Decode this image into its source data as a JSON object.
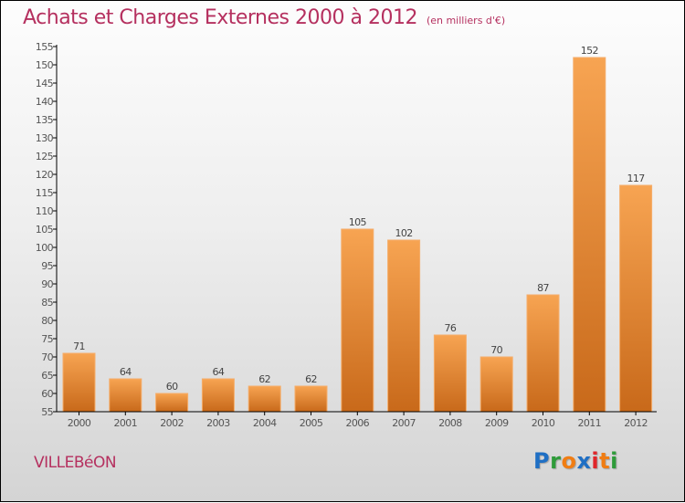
{
  "header": {
    "title": "Achats et Charges Externes 2000 à 2012",
    "unit": "(en milliers d'€)"
  },
  "footer": {
    "commune": "VILLEBéON",
    "logo_letters": [
      {
        "char": "P",
        "color": "#1f6fc4"
      },
      {
        "char": "r",
        "color": "#2e9b3a"
      },
      {
        "char": "o",
        "color": "#f07d13"
      },
      {
        "char": "x",
        "color": "#1f6fc4"
      },
      {
        "char": "i",
        "color": "#e0262a"
      },
      {
        "char": "t",
        "color": "#f07d13"
      },
      {
        "char": "i",
        "color": "#2e9b3a"
      }
    ]
  },
  "colors": {
    "title": "#b5305f",
    "bar_top": "#f7a452",
    "bar_bottom": "#c8691a",
    "bar_edge": "#f5ad6a",
    "axis": "#000000"
  },
  "chart_data": {
    "type": "bar",
    "title": "Achats et Charges Externes 2000 à 2012",
    "subtitle": "(en milliers d'€)",
    "xlabel": "",
    "ylabel": "",
    "categories": [
      "2000",
      "2001",
      "2002",
      "2003",
      "2004",
      "2005",
      "2006",
      "2007",
      "2008",
      "2009",
      "2010",
      "2011",
      "2012"
    ],
    "values": [
      71,
      64,
      60,
      64,
      62,
      62,
      105,
      102,
      76,
      70,
      87,
      152,
      117
    ],
    "data_labels": [
      "71",
      "64",
      "60",
      "64",
      "62",
      "62",
      "105",
      "102",
      "76",
      "70",
      "87",
      "152",
      "117"
    ],
    "ylim": [
      55,
      155
    ],
    "yticks": [
      55,
      60,
      65,
      70,
      75,
      80,
      85,
      90,
      95,
      100,
      105,
      110,
      115,
      120,
      125,
      130,
      135,
      140,
      145,
      150,
      155
    ],
    "grid": false,
    "legend": "none"
  }
}
